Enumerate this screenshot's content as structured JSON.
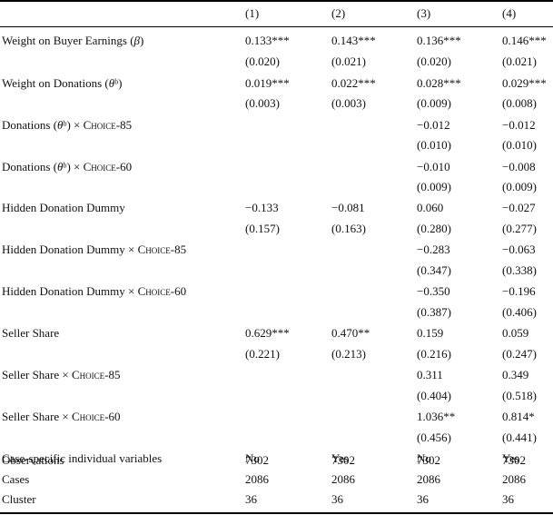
{
  "columns": [
    "(1)",
    "(2)",
    "(3)",
    "(4)"
  ],
  "rows": [
    {
      "label": "Weight on Buyer Earnings (β)",
      "values": [
        "0.133***",
        "0.143***",
        "0.136***",
        "0.146***"
      ]
    },
    {
      "label": "",
      "values": [
        "(0.020)",
        "(0.021)",
        "(0.020)",
        "(0.021)"
      ]
    },
    {
      "label": "Weight on Donations (θᵇ)",
      "values": [
        "0.019***",
        "0.022***",
        "0.028***",
        "0.029***"
      ]
    },
    {
      "label": "",
      "values": [
        "(0.003)",
        "(0.003)",
        "(0.009)",
        "(0.008)"
      ]
    },
    {
      "label": "Donations (θᵇ) × Choice-85",
      "values": [
        "",
        "",
        "−0.012",
        "−0.012"
      ]
    },
    {
      "label": "",
      "values": [
        "",
        "",
        "(0.010)",
        "(0.010)"
      ]
    },
    {
      "label": "Donations (θᵇ) × Choice-60",
      "values": [
        "",
        "",
        "−0.010",
        "−0.008"
      ]
    },
    {
      "label": "",
      "values": [
        "",
        "",
        "(0.009)",
        "(0.009)"
      ]
    },
    {
      "label": "Hidden Donation Dummy",
      "values": [
        "−0.133",
        "−0.081",
        "0.060",
        "−0.027"
      ]
    },
    {
      "label": "",
      "values": [
        "(0.157)",
        "(0.163)",
        "(0.280)",
        "(0.277)"
      ]
    },
    {
      "label": "Hidden Donation Dummy × Choice-85",
      "values": [
        "",
        "",
        "−0.283",
        "−0.063"
      ]
    },
    {
      "label": "",
      "values": [
        "",
        "",
        "(0.347)",
        "(0.338)"
      ]
    },
    {
      "label": "Hidden Donation Dummy × Choice-60",
      "values": [
        "",
        "",
        "−0.350",
        "−0.196"
      ]
    },
    {
      "label": "",
      "values": [
        "",
        "",
        "(0.387)",
        "(0.406)"
      ]
    },
    {
      "label": "Seller Share",
      "values": [
        "0.629***",
        "0.470**",
        "0.159",
        "0.059"
      ]
    },
    {
      "label": "",
      "values": [
        "(0.221)",
        "(0.213)",
        "(0.216)",
        "(0.247)"
      ]
    },
    {
      "label": "Seller Share × Choice-85",
      "values": [
        "",
        "",
        "0.311",
        "0.349"
      ]
    },
    {
      "label": "",
      "values": [
        "",
        "",
        "(0.404)",
        "(0.518)"
      ]
    },
    {
      "label": "Seller Share × Choice-60",
      "values": [
        "",
        "",
        "1.036**",
        "0.814*"
      ]
    },
    {
      "label": "",
      "values": [
        "",
        "",
        "(0.456)",
        "(0.441)"
      ]
    },
    {
      "label": "Case-specific individual variables",
      "values": [
        "No",
        "Yes",
        "No",
        "Yes"
      ]
    },
    {
      "label": "Observations",
      "values": [
        "7302",
        "7302",
        "7302",
        "7302"
      ]
    },
    {
      "label": "Cases",
      "values": [
        "2086",
        "2086",
        "2086",
        "2086"
      ]
    },
    {
      "label": "Cluster",
      "values": [
        "36",
        "36",
        "36",
        "36"
      ]
    }
  ]
}
